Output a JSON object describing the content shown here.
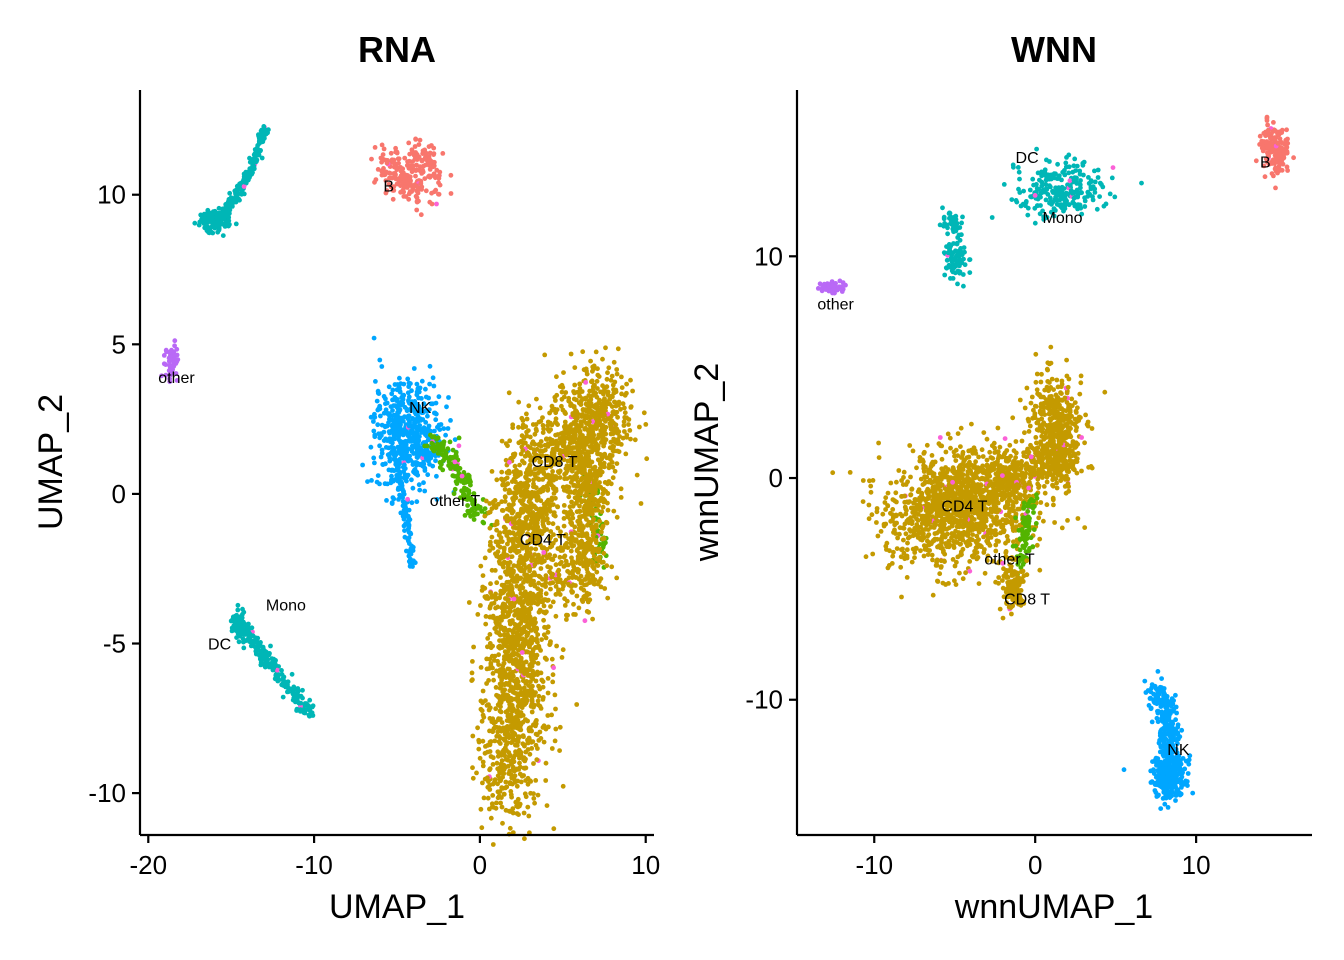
{
  "colors": {
    "B": "#F8766D",
    "CD4 T": "#C49A00",
    "CD8 T": "#C49A00",
    "other T": "#53B400",
    "NK": "#00A6FF",
    "Mono": "#00B6B6",
    "DC": "#00B6B6",
    "other": "#B969F6",
    "extra": "#FB61D7"
  },
  "chart_data": [
    {
      "type": "scatter",
      "title": "RNA",
      "xlabel": "UMAP_1",
      "ylabel": "UMAP_2",
      "xlim": [
        -20.5,
        10.5
      ],
      "ylim": [
        -11.4,
        13.5
      ],
      "xticks": [
        -20,
        -10,
        0,
        10
      ],
      "yticks": [
        -10,
        -5,
        0,
        5,
        10
      ],
      "xtick_labels": [
        "-20",
        "-10",
        "0",
        "10"
      ],
      "ytick_labels": [
        "-10",
        "-5",
        "0",
        "5",
        "10"
      ],
      "clusters": [
        {
          "name": "B",
          "label_pos": [
            -5.5,
            10.1
          ],
          "centroid": [
            -4.5,
            10.6
          ]
        },
        {
          "name": "other",
          "label_pos": [
            -18.3,
            3.7
          ],
          "centroid": [
            -18.6,
            4.4
          ]
        },
        {
          "name": "NK",
          "label_pos": [
            -3.6,
            2.7
          ],
          "centroid": [
            -4.3,
            1.8
          ]
        },
        {
          "name": "CD8 T",
          "label_pos": [
            4.5,
            0.9
          ],
          "centroid": [
            6.5,
            1.5
          ]
        },
        {
          "name": "other T",
          "label_pos": [
            -1.5,
            -0.4
          ],
          "centroid": [
            -1.2,
            0.2
          ]
        },
        {
          "name": "CD4 T",
          "label_pos": [
            3.8,
            -1.7
          ],
          "centroid": [
            3.0,
            -3.5
          ]
        },
        {
          "name": "Mono",
          "label_pos": [
            -11.7,
            -3.9
          ],
          "centroid": [
            -12.5,
            -5.6
          ]
        },
        {
          "name": "DC",
          "label_pos": [
            -15.7,
            -5.2
          ],
          "centroid": [
            -14.5,
            -4.5
          ]
        }
      ]
    },
    {
      "type": "scatter",
      "title": "WNN",
      "xlabel": "wnnUMAP_1",
      "ylabel": "wnnUMAP_2",
      "xlim": [
        -14.8,
        17.2
      ],
      "ylim": [
        -16.1,
        17.5
      ],
      "xticks": [
        -10,
        0,
        10
      ],
      "yticks": [
        -10,
        0,
        10
      ],
      "xtick_labels": [
        "-10",
        "0",
        "10"
      ],
      "ytick_labels": [
        "-10",
        "0",
        "10"
      ],
      "clusters": [
        {
          "name": "DC",
          "label_pos": [
            -0.5,
            14.2
          ],
          "centroid": [
            1.0,
            13.0
          ]
        },
        {
          "name": "B",
          "label_pos": [
            14.3,
            14.0
          ],
          "centroid": [
            14.9,
            14.8
          ]
        },
        {
          "name": "Mono",
          "label_pos": [
            1.7,
            11.5
          ],
          "centroid": [
            2.5,
            13.0
          ]
        },
        {
          "name": "other",
          "label_pos": [
            -12.4,
            7.6
          ],
          "centroid": [
            -12.5,
            8.6
          ]
        },
        {
          "name": "CD4 T",
          "label_pos": [
            -4.4,
            -1.5
          ],
          "centroid": [
            -4.5,
            -1.2
          ]
        },
        {
          "name": "other T",
          "label_pos": [
            -1.6,
            -3.9
          ],
          "centroid": [
            -0.8,
            -3.5
          ]
        },
        {
          "name": "CD8 T",
          "label_pos": [
            -0.5,
            -5.7
          ],
          "centroid": [
            -1.5,
            -5.0
          ]
        },
        {
          "name": "NK",
          "label_pos": [
            8.9,
            -12.5
          ],
          "centroid": [
            8.3,
            -13.2
          ]
        }
      ]
    }
  ]
}
